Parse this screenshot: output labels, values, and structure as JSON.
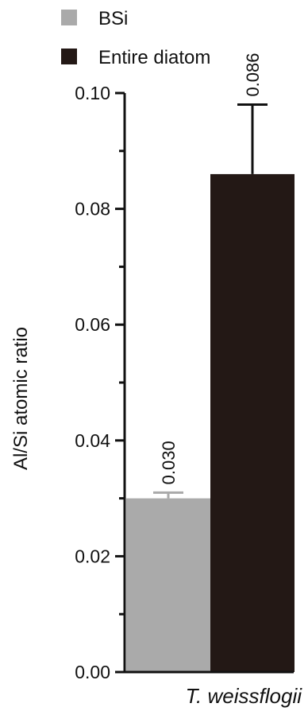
{
  "chart_data": {
    "type": "bar",
    "categories": [
      "T. weissflogii"
    ],
    "series": [
      {
        "name": "BSi",
        "color": "#aaaaaa",
        "values": [
          0.03
        ],
        "error": [
          0.001
        ],
        "value_labels": [
          "0.030"
        ]
      },
      {
        "name": "Entire diatom",
        "color": "#231815",
        "values": [
          0.086
        ],
        "error": [
          0.012
        ],
        "value_labels": [
          "0.086"
        ]
      }
    ],
    "ylabel": "Al/Si atomic ratio",
    "ylim": [
      0,
      0.1
    ],
    "yticks": [
      "0.00",
      "0.02",
      "0.04",
      "0.06",
      "0.08",
      "0.10"
    ],
    "legend_position": "top-left",
    "grid": false
  }
}
